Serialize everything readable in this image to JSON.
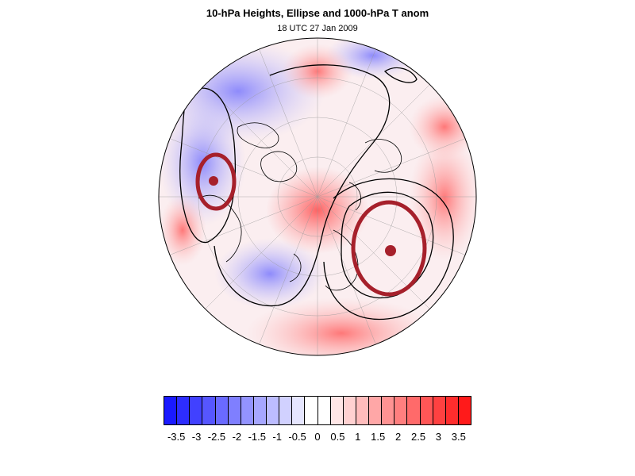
{
  "title": "10-hPa Heights, Ellipse and 1000-hPa T anom",
  "subtitle": "18 UTC 27 Jan 2009",
  "colors": {
    "cold": "#1a1aff",
    "warm": "#ff1a1a",
    "ellipse": "#a6202b",
    "contour": "#000000",
    "coast": "#000000"
  },
  "map": {
    "projection": "orthographic-north-polar",
    "centers": [
      {
        "name": "vortex-center-west"
      },
      {
        "name": "vortex-center-east"
      }
    ]
  },
  "colorbar": {
    "cells": [
      "#1a1aff",
      "#2d2dff",
      "#4141ff",
      "#5656ff",
      "#6a6aff",
      "#7f7fff",
      "#9393ff",
      "#a7a7ff",
      "#bcbcff",
      "#d1d1ff",
      "#e6e6ff",
      "#ffffff",
      "#ffffff",
      "#ffe6e6",
      "#ffd1d1",
      "#ffbcbc",
      "#ffa7a7",
      "#ff9393",
      "#ff7f7f",
      "#ff6a6a",
      "#ff5656",
      "#ff4141",
      "#ff2d2d",
      "#ff1a1a"
    ],
    "tick_labels": [
      "-3.5",
      "-3",
      "-2.5",
      "-2",
      "-1.5",
      "-1",
      "-0.5",
      "0",
      "0.5",
      "1",
      "1.5",
      "2",
      "2.5",
      "3",
      "3.5"
    ]
  }
}
